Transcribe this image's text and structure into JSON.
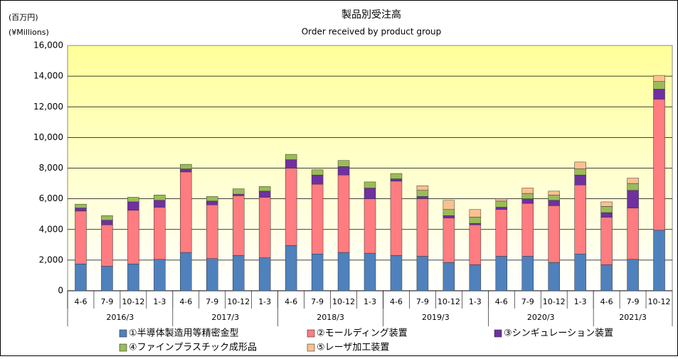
{
  "chart_data": {
    "type": "stacked_bar",
    "title": "製品別受注高",
    "subtitle": "Order received by product group",
    "y_unit_label": "(百万円)",
    "y_unit_label_en": "(¥Millions)",
    "categories": [
      "4-6",
      "7-9",
      "10-12",
      "1-3",
      "4-6",
      "7-9",
      "10-12",
      "1-3",
      "4-6",
      "7-9",
      "10-12",
      "1-3",
      "4-6",
      "7-9",
      "10-12",
      "1-3",
      "4-6",
      "7-9",
      "10-12",
      "1-3",
      "4-6",
      "7-9",
      "10-12"
    ],
    "group_labels": [
      "2016/3",
      "2017/3",
      "2018/3",
      "2019/3",
      "2020/3",
      "2021/3"
    ],
    "series": [
      {
        "name": "①半導体製造用等精密金型",
        "color": "#4f81bd",
        "values": [
          1750,
          1600,
          1750,
          2050,
          2500,
          2100,
          2300,
          2150,
          2950,
          2400,
          2500,
          2450,
          2300,
          2250,
          1850,
          1700,
          2250,
          2250,
          1850,
          2400,
          1700,
          2050,
          3950
        ]
      },
      {
        "name": "②モールディング装置",
        "color": "#ff7c80",
        "values": [
          3450,
          2700,
          3500,
          3400,
          5250,
          3500,
          3900,
          3950,
          5050,
          4550,
          5050,
          3550,
          4850,
          3750,
          2900,
          2600,
          3050,
          3450,
          3700,
          4500,
          3100,
          3350,
          8550
        ]
      },
      {
        "name": "③シンギュレーション装置",
        "color": "#7030a0",
        "values": [
          200,
          300,
          550,
          450,
          200,
          250,
          100,
          400,
          550,
          600,
          550,
          700,
          150,
          150,
          150,
          100,
          150,
          300,
          350,
          650,
          300,
          1150,
          650
        ]
      },
      {
        "name": "④ファインプラスチック成形品",
        "color": "#9bbb59",
        "values": [
          250,
          300,
          300,
          350,
          300,
          300,
          350,
          300,
          350,
          350,
          400,
          400,
          350,
          400,
          400,
          400,
          400,
          350,
          350,
          400,
          400,
          450,
          500
        ]
      },
      {
        "name": "⑤レーザ加工装置",
        "color": "#fac090",
        "values": [
          0,
          0,
          0,
          0,
          0,
          0,
          0,
          0,
          0,
          0,
          0,
          0,
          0,
          300,
          600,
          500,
          150,
          350,
          250,
          450,
          300,
          350,
          400
        ]
      }
    ],
    "ylim": [
      0,
      16000
    ],
    "yticks": [
      0,
      {
        "value": 2000,
        "label": "2,000"
      },
      {
        "value": 4000,
        "label": "4,000"
      },
      {
        "value": 6000,
        "label": "6,000"
      },
      {
        "value": 8000,
        "label": "8,000"
      },
      {
        "value": 10000,
        "label": "10,000"
      },
      {
        "value": 12000,
        "label": "12,000"
      },
      {
        "value": 14000,
        "label": "14,000"
      },
      {
        "value": 16000,
        "label": "16,000"
      }
    ],
    "grid": true
  }
}
